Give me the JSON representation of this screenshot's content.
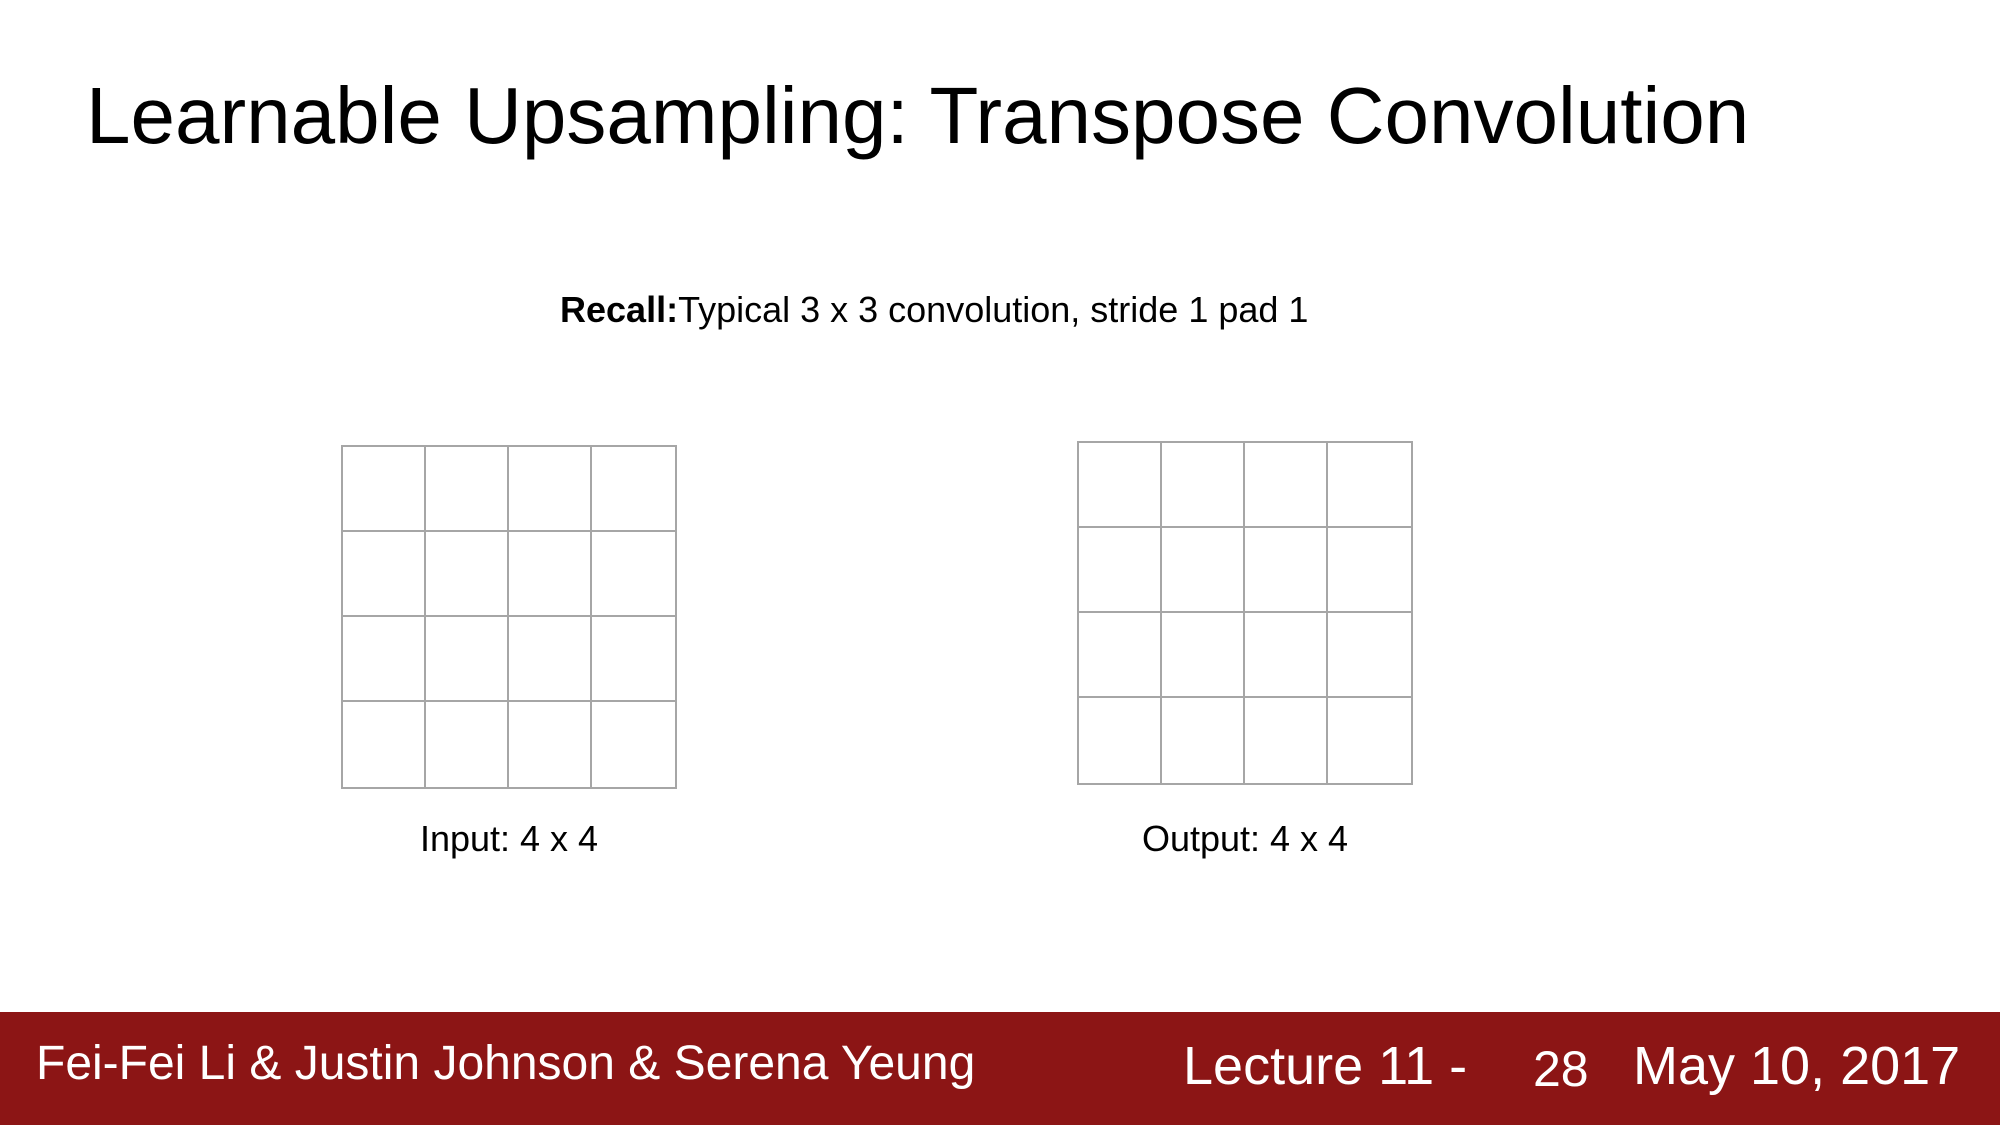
{
  "slide": {
    "title": "Learnable Upsampling: Transpose Convolution",
    "recall": {
      "bold": "Recall:",
      "text": "Typical 3 x 3 convolution, stride 1 pad 1"
    }
  },
  "diagram": {
    "input": {
      "label": "Input: 4 x 4",
      "rows": 4,
      "cols": 4
    },
    "output": {
      "label": "Output: 4 x 4",
      "rows": 4,
      "cols": 4
    },
    "grid_line_color": "#a6a6a6"
  },
  "footer": {
    "authors": "Fei-Fei Li & Justin Johnson & Serena Yeung",
    "lecture": "Lecture 11 -",
    "page": "28",
    "date": "May 10, 2017",
    "background_color": "#8c1515"
  }
}
